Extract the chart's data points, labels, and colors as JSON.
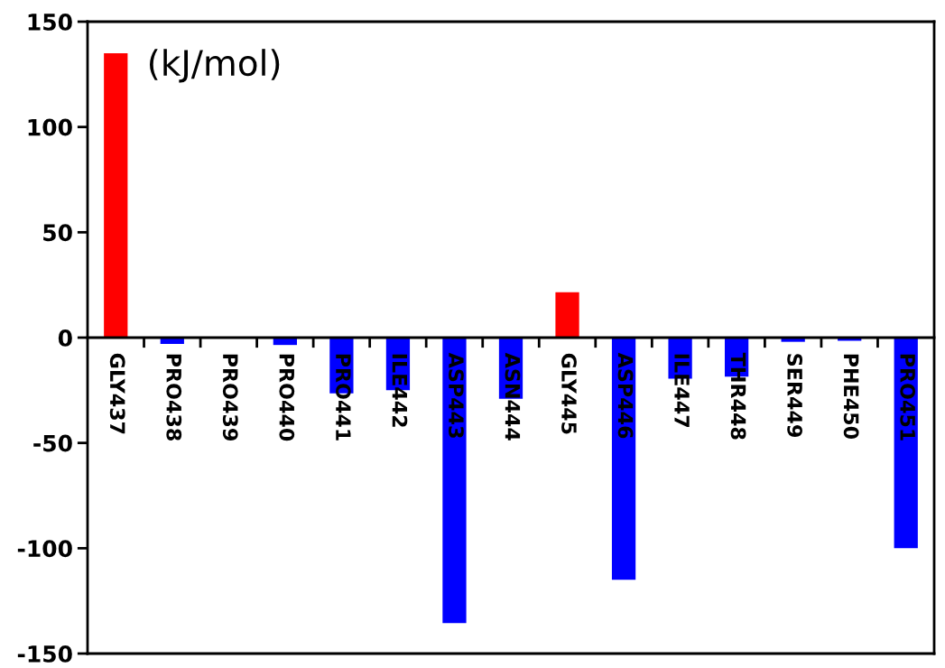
{
  "chart_data": {
    "type": "bar",
    "categories": [
      "GLY437",
      "PRO438",
      "PRO439",
      "PRO440",
      "PRO441",
      "ILE442",
      "ASP443",
      "ASN444",
      "GLY445",
      "ASP446",
      "ILE447",
      "THR448",
      "SER449",
      "PHE450",
      "PRO451"
    ],
    "values": [
      135,
      -3,
      0,
      -3.5,
      -26.5,
      -25,
      -135.5,
      -29,
      21.5,
      -115,
      -19.5,
      -18.5,
      -2,
      -1.5,
      -100
    ],
    "colors": [
      "#ff0000",
      "#0000ff",
      "#0000ff",
      "#0000ff",
      "#0000ff",
      "#0000ff",
      "#0000ff",
      "#0000ff",
      "#ff0000",
      "#0000ff",
      "#0000ff",
      "#0000ff",
      "#0000ff",
      "#0000ff",
      "#0000ff"
    ],
    "ylim": [
      -150,
      150
    ],
    "yticks": [
      -150,
      -100,
      -50,
      0,
      50,
      100,
      150
    ],
    "annotations": [
      "(kJ/mol)"
    ]
  }
}
